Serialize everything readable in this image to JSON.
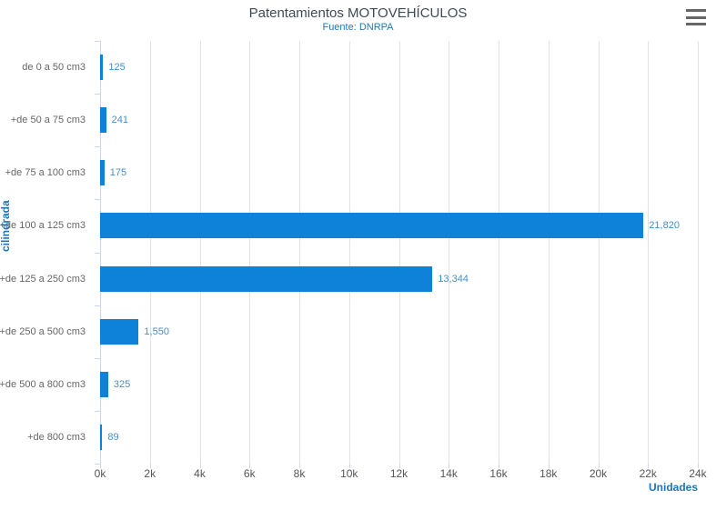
{
  "header": {
    "export_menu_icon": "hamburger-icon"
  },
  "chart_data": {
    "type": "bar",
    "orientation": "horizontal",
    "title": "Patentamientos MOTOVEHÍCULOS",
    "subtitle": "Fuente: DNRPA",
    "categories": [
      "de 0 a 50 cm3",
      "+de 50 a 75 cm3",
      "+de 75 a 100 cm3",
      "+de 100 a 125 cm3",
      "+de 125 a 250 cm3",
      "+de 250 a 500 cm3",
      "+de 500 a 800 cm3",
      "+de 800 cm3"
    ],
    "values": [
      125,
      241,
      175,
      21820,
      13344,
      1550,
      325,
      89
    ],
    "value_labels": [
      "125",
      "241",
      "175",
      "21,820",
      "13,344",
      "1,550",
      "325",
      "89"
    ],
    "xlabel": "Unidades",
    "ylabel": "cilindrada",
    "xlim": [
      0,
      24000
    ],
    "x_ticks": [
      0,
      2000,
      4000,
      6000,
      8000,
      10000,
      12000,
      14000,
      16000,
      18000,
      20000,
      22000,
      24000
    ],
    "x_tick_labels": [
      "0k",
      "2k",
      "4k",
      "6k",
      "8k",
      "10k",
      "12k",
      "14k",
      "16k",
      "18k",
      "20k",
      "22k",
      "24k"
    ],
    "grid": true,
    "legend": false,
    "colors": {
      "bar": "#0e82d9",
      "data_label": "#4a8ec5",
      "title": "#3e4b57",
      "subtitle": "#2478b5",
      "axis_title": "#1f74b4",
      "category_label": "#666666",
      "tick_label": "#555555",
      "gridline": "#e3e3e3",
      "axis_line": "#ccd6eb",
      "menu_icon": "#666666"
    }
  }
}
